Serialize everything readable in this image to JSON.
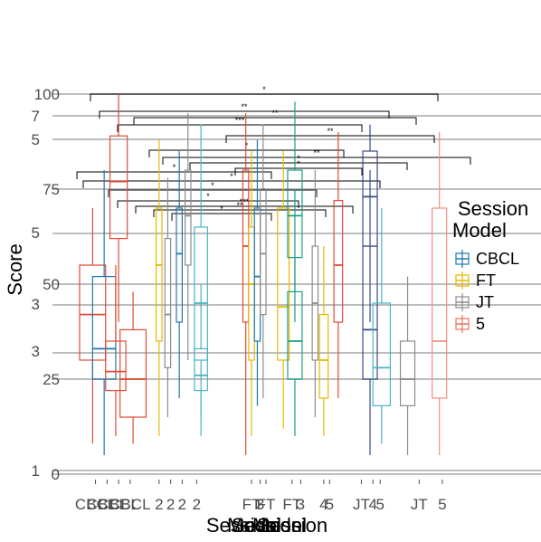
{
  "chart_data": {
    "type": "box",
    "ylabel": "Score",
    "xlabel": "Session",
    "overlaid_xlabels": [
      "Model",
      "Session",
      "Model",
      "Session"
    ],
    "ylim": [
      0,
      100
    ],
    "y_ticks": [
      0,
      25,
      50,
      75,
      100
    ],
    "overlaid_y_tick_labels": [
      "1",
      "3",
      "3",
      "5",
      "5",
      "7",
      "100",
      "75",
      "50",
      "25",
      "0"
    ],
    "x_tick_labels": [
      "CBCL",
      "CBCL",
      "CBCL",
      "CBCL",
      "2",
      "2",
      "2",
      "2",
      "FT",
      "FT",
      "3",
      "FT",
      "3",
      "4",
      "5",
      "JT",
      "4",
      "5",
      "JT",
      "5"
    ],
    "legend": {
      "title": "Model",
      "overlaid_title": "Session",
      "position": "right",
      "items": [
        {
          "label": "CBCL",
          "color": "#1f77b4"
        },
        {
          "label": "FT",
          "color": "#e6b800"
        },
        {
          "label": "JT",
          "color": "#8c8c8c"
        },
        {
          "label": "5",
          "color": "#e8735a"
        }
      ]
    },
    "significance_labels": [
      "*",
      "**",
      "***",
      "**",
      "*",
      "**",
      "*",
      "*",
      "*",
      "***",
      "**",
      "*",
      "*",
      "**",
      "*",
      "*"
    ],
    "boxes": [
      {
        "x": 1.0,
        "w": 0.9,
        "color": "#e34a33",
        "min": 8,
        "q1": 30,
        "median": 42,
        "q3": 55,
        "max": 70
      },
      {
        "x": 1.4,
        "w": 0.8,
        "color": "#1f77b4",
        "min": 5,
        "q1": 25,
        "median": 33,
        "q3": 52,
        "max": 80
      },
      {
        "x": 1.8,
        "w": 0.7,
        "color": "#e34a33",
        "min": 10,
        "q1": 22,
        "median": 27,
        "q3": 35,
        "max": 55
      },
      {
        "x": 1.9,
        "w": 0.6,
        "color": "#e34a33",
        "min": 40,
        "q1": 62,
        "median": 77,
        "q3": 89,
        "max": 100
      },
      {
        "x": 2.4,
        "w": 0.9,
        "color": "#e34a33",
        "min": 8,
        "q1": 15,
        "median": 25,
        "q3": 38,
        "max": 48
      },
      {
        "x": 3.3,
        "w": 0.2,
        "color": "#e6b800",
        "min": 10,
        "q1": 35,
        "median": 55,
        "q3": 70,
        "max": 88
      },
      {
        "x": 3.6,
        "w": 0.2,
        "color": "#8c8c8c",
        "min": 15,
        "q1": 28,
        "median": 42,
        "q3": 62,
        "max": 78
      },
      {
        "x": 4.0,
        "w": 0.2,
        "color": "#1f77b4",
        "min": 20,
        "q1": 40,
        "median": 58,
        "q3": 70,
        "max": 85
      },
      {
        "x": 4.3,
        "w": 0.2,
        "color": "#8c8c8c",
        "min": 30,
        "q1": 55,
        "median": 68,
        "q3": 80,
        "max": 95
      },
      {
        "x": 4.75,
        "w": 0.45,
        "color": "#4ab3c7",
        "min": 10,
        "q1": 30,
        "median": 45,
        "q3": 65,
        "max": 92
      },
      {
        "x": 4.75,
        "w": 0.45,
        "color": "#4ab3c7",
        "min": 15,
        "q1": 22,
        "median": 26,
        "q3": 33,
        "max": 50
      },
      {
        "x": 6.3,
        "w": 0.2,
        "color": "#e34a33",
        "min": 5,
        "q1": 40,
        "median": 60,
        "q3": 80,
        "max": 95
      },
      {
        "x": 6.5,
        "w": 0.2,
        "color": "#e6b800",
        "min": 10,
        "q1": 30,
        "median": 50,
        "q3": 65,
        "max": 85
      },
      {
        "x": 6.7,
        "w": 0.2,
        "color": "#1f77b4",
        "min": 18,
        "q1": 35,
        "median": 52,
        "q3": 70,
        "max": 88
      },
      {
        "x": 6.9,
        "w": 0.2,
        "color": "#8c8c8c",
        "min": 20,
        "q1": 42,
        "median": 58,
        "q3": 75,
        "max": 92
      },
      {
        "x": 7.6,
        "w": 0.4,
        "color": "#e6b800",
        "min": 12,
        "q1": 30,
        "median": 44,
        "q3": 70,
        "max": 85
      },
      {
        "x": 8.0,
        "w": 0.5,
        "color": "#17a085",
        "min": 10,
        "q1": 25,
        "median": 35,
        "q3": 48,
        "max": 75
      },
      {
        "x": 8.0,
        "w": 0.5,
        "color": "#17a085",
        "min": 40,
        "q1": 57,
        "median": 68,
        "q3": 80,
        "max": 98
      },
      {
        "x": 8.7,
        "w": 0.2,
        "color": "#8c8c8c",
        "min": 15,
        "q1": 30,
        "median": 45,
        "q3": 60,
        "max": 80
      },
      {
        "x": 9.0,
        "w": 0.3,
        "color": "#e6b800",
        "min": 10,
        "q1": 20,
        "median": 30,
        "q3": 42,
        "max": 60
      },
      {
        "x": 9.5,
        "w": 0.3,
        "color": "#e34a33",
        "min": 20,
        "q1": 40,
        "median": 55,
        "q3": 72,
        "max": 90
      },
      {
        "x": 10.6,
        "w": 0.5,
        "color": "#3a4a8a",
        "min": 5,
        "q1": 25,
        "median": 38,
        "q3": 60,
        "max": 80
      },
      {
        "x": 10.6,
        "w": 0.5,
        "color": "#3a4a8a",
        "min": 40,
        "q1": 60,
        "median": 73,
        "q3": 85,
        "max": 92
      },
      {
        "x": 11.0,
        "w": 0.6,
        "color": "#4ab3c7",
        "min": 8,
        "q1": 18,
        "median": 28,
        "q3": 45,
        "max": 70
      },
      {
        "x": 11.9,
        "w": 0.5,
        "color": "#8c8c8c",
        "min": 5,
        "q1": 18,
        "median": 25,
        "q3": 35,
        "max": 52
      },
      {
        "x": 13.0,
        "w": 0.5,
        "color": "#f0907a",
        "min": 5,
        "q1": 20,
        "median": 35,
        "q3": 70,
        "max": 90
      }
    ],
    "x_positions_labels": [
      {
        "x": 1.1,
        "label": "CBCL"
      },
      {
        "x": 1.5,
        "label": "CBCL"
      },
      {
        "x": 1.9,
        "label": "CBCL"
      },
      {
        "x": 2.3,
        "label": "CBCL"
      },
      {
        "x": 3.3,
        "label": "2"
      },
      {
        "x": 3.7,
        "label": "2"
      },
      {
        "x": 4.1,
        "label": "2"
      },
      {
        "x": 4.6,
        "label": "2"
      },
      {
        "x": 6.5,
        "label": "FT"
      },
      {
        "x": 6.8,
        "label": "3"
      },
      {
        "x": 7.0,
        "label": "FT"
      },
      {
        "x": 7.9,
        "label": "FT"
      },
      {
        "x": 8.2,
        "label": "3"
      },
      {
        "x": 9.0,
        "label": "4"
      },
      {
        "x": 9.2,
        "label": "5"
      },
      {
        "x": 10.3,
        "label": "JT"
      },
      {
        "x": 10.7,
        "label": "4"
      },
      {
        "x": 10.95,
        "label": "5"
      },
      {
        "x": 12.3,
        "label": "JT"
      },
      {
        "x": 13.1,
        "label": "5"
      }
    ],
    "x_range": [
      0.3,
      14.7
    ]
  }
}
